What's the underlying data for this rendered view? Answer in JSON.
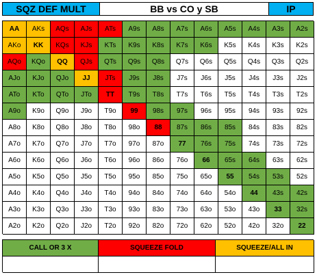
{
  "header": {
    "title_left": "SQZ DEF MULT",
    "title_mid": "BB vs CO y SB",
    "title_right": "IP"
  },
  "colors": {
    "blue": "#00b0f0",
    "green": "#70ad47",
    "red": "#ff0000",
    "yellow": "#ffc000",
    "white": "#ffffff"
  },
  "grid": {
    "rows": [
      [
        "AA",
        "AKs",
        "AQs",
        "AJs",
        "ATs",
        "A9s",
        "A8s",
        "A7s",
        "A6s",
        "A5s",
        "A4s",
        "A3s",
        "A2s"
      ],
      [
        "AKo",
        "KK",
        "KQs",
        "KJs",
        "KTs",
        "K9s",
        "K8s",
        "K7s",
        "K6s",
        "K5s",
        "K4s",
        "K3s",
        "K2s"
      ],
      [
        "AQo",
        "KQo",
        "QQ",
        "QJs",
        "QTs",
        "Q9s",
        "Q8s",
        "Q7s",
        "Q6s",
        "Q5s",
        "Q4s",
        "Q3s",
        "Q2s"
      ],
      [
        "AJo",
        "KJo",
        "QJo",
        "JJ",
        "JTs",
        "J9s",
        "J8s",
        "J7s",
        "J6s",
        "J5s",
        "J4s",
        "J3s",
        "J2s"
      ],
      [
        "ATo",
        "KTo",
        "QTo",
        "JTo",
        "TT",
        "T9s",
        "T8s",
        "T7s",
        "T6s",
        "T5s",
        "T4s",
        "T3s",
        "T2s"
      ],
      [
        "A9o",
        "K9o",
        "Q9o",
        "J9o",
        "T9o",
        "99",
        "98s",
        "97s",
        "96s",
        "95s",
        "94s",
        "93s",
        "92s"
      ],
      [
        "A8o",
        "K8o",
        "Q8o",
        "J8o",
        "T8o",
        "98o",
        "88",
        "87s",
        "86s",
        "85s",
        "84s",
        "83s",
        "82s"
      ],
      [
        "A7o",
        "K7o",
        "Q7o",
        "J7o",
        "T7o",
        "97o",
        "87o",
        "77",
        "76s",
        "75s",
        "74s",
        "73s",
        "72s"
      ],
      [
        "A6o",
        "K6o",
        "Q6o",
        "J6o",
        "T6o",
        "96o",
        "86o",
        "76o",
        "66",
        "65s",
        "64s",
        "63s",
        "62s"
      ],
      [
        "A5o",
        "K5o",
        "Q5o",
        "J5o",
        "T5o",
        "95o",
        "85o",
        "75o",
        "65o",
        "55",
        "54s",
        "53s",
        "52s"
      ],
      [
        "A4o",
        "K4o",
        "Q4o",
        "J4o",
        "T4o",
        "94o",
        "84o",
        "74o",
        "64o",
        "54o",
        "44",
        "43s",
        "42s"
      ],
      [
        "A3o",
        "K3o",
        "Q3o",
        "J3o",
        "T3o",
        "93o",
        "83o",
        "73o",
        "63o",
        "53o",
        "43o",
        "33",
        "32s"
      ],
      [
        "A2o",
        "K2o",
        "Q2o",
        "J2o",
        "T2o",
        "92o",
        "82o",
        "72o",
        "62o",
        "52o",
        "42o",
        "32o",
        "22"
      ]
    ],
    "action_colors": [
      [
        "y",
        "y",
        "r",
        "r",
        "r",
        "g",
        "g",
        "g",
        "g",
        "g",
        "g",
        "g",
        "g"
      ],
      [
        "y",
        "y",
        "r",
        "r",
        "g",
        "g",
        "g",
        "g",
        "g",
        "w",
        "w",
        "w",
        "w"
      ],
      [
        "r",
        "g",
        "y",
        "r",
        "g",
        "g",
        "g",
        "w",
        "w",
        "w",
        "w",
        "w",
        "w"
      ],
      [
        "g",
        "g",
        "g",
        "y",
        "r",
        "g",
        "g",
        "w",
        "w",
        "w",
        "w",
        "w",
        "w"
      ],
      [
        "g",
        "g",
        "g",
        "g",
        "r",
        "g",
        "g",
        "w",
        "w",
        "w",
        "w",
        "w",
        "w"
      ],
      [
        "g",
        "w",
        "w",
        "w",
        "w",
        "r",
        "g",
        "g",
        "w",
        "w",
        "w",
        "w",
        "w"
      ],
      [
        "w",
        "w",
        "w",
        "w",
        "w",
        "w",
        "r",
        "g",
        "g",
        "g",
        "w",
        "w",
        "w"
      ],
      [
        "w",
        "w",
        "w",
        "w",
        "w",
        "w",
        "w",
        "g",
        "g",
        "g",
        "w",
        "w",
        "w"
      ],
      [
        "w",
        "w",
        "w",
        "w",
        "w",
        "w",
        "w",
        "w",
        "g",
        "g",
        "g",
        "w",
        "w"
      ],
      [
        "w",
        "w",
        "w",
        "w",
        "w",
        "w",
        "w",
        "w",
        "w",
        "g",
        "g",
        "g",
        "w"
      ],
      [
        "w",
        "w",
        "w",
        "w",
        "w",
        "w",
        "w",
        "w",
        "w",
        "w",
        "g",
        "g",
        "g"
      ],
      [
        "w",
        "w",
        "w",
        "w",
        "w",
        "w",
        "w",
        "w",
        "w",
        "w",
        "w",
        "g",
        "g"
      ],
      [
        "w",
        "w",
        "w",
        "w",
        "w",
        "w",
        "w",
        "w",
        "w",
        "w",
        "w",
        "w",
        "g"
      ]
    ]
  },
  "legend": {
    "items": [
      {
        "label": "CALL OR 3 X",
        "color": "g"
      },
      {
        "label": "SQUEEZE FOLD",
        "color": "r"
      },
      {
        "label": "SQUEEZE/ALL IN",
        "color": "y"
      }
    ]
  }
}
